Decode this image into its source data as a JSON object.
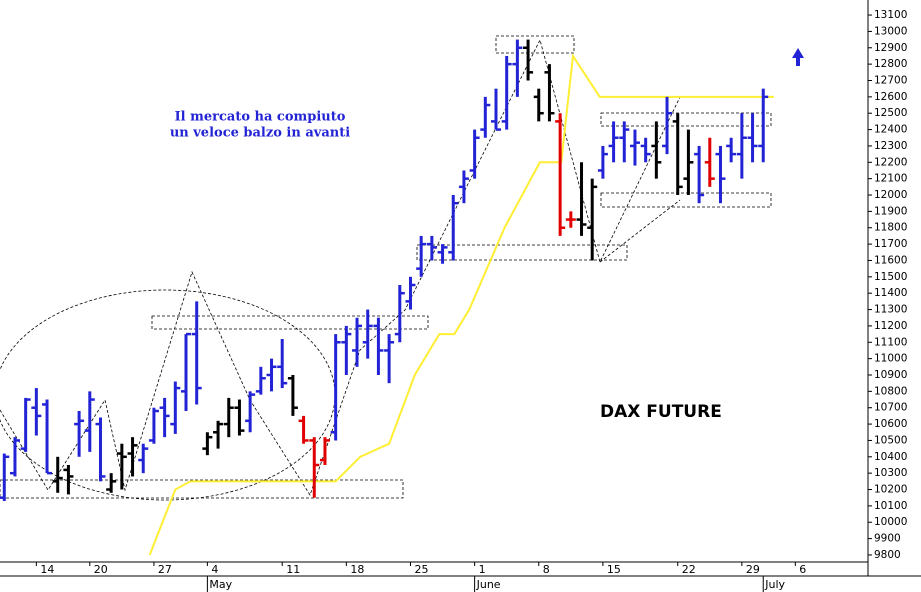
{
  "chart_data": {
    "type": "ohlc",
    "title": "DAX FUTURE",
    "annotations": [
      "Il mercato ha compiuto",
      "un veloce balzo in avanti"
    ],
    "x": [
      0,
      1,
      2,
      3,
      4,
      5,
      6,
      7,
      8,
      9,
      10,
      11,
      12,
      13,
      14,
      15,
      16,
      17,
      18,
      19,
      20,
      21,
      22,
      23,
      24,
      25,
      26,
      27,
      28,
      29,
      30,
      31,
      32,
      33,
      34,
      35,
      36,
      37,
      38,
      39,
      40,
      41,
      42,
      43,
      44,
      45,
      46,
      47,
      48,
      49,
      50,
      51,
      52,
      53,
      54,
      55,
      56,
      57,
      58,
      59,
      60,
      61,
      62,
      63,
      64,
      65,
      66,
      67,
      68,
      69,
      70,
      71
    ],
    "open": [
      10150,
      10300,
      10450,
      10700,
      10720,
      10250,
      10320,
      10600,
      10560,
      10600,
      10200,
      10420,
      10420,
      10380,
      10500,
      10700,
      10600,
      10800,
      11150,
      10450,
      10550,
      10600,
      10700,
      10620,
      10800,
      10900,
      10950,
      10880,
      10620,
      10500,
      10380,
      10550,
      11100,
      11050,
      11100,
      11200,
      11050,
      11150,
      11350,
      11550,
      11700,
      11650,
      11650,
      12050,
      12150,
      12400,
      12450,
      12450,
      12800,
      12900,
      12600,
      12750,
      12450,
      11850,
      11850,
      11800,
      12150,
      12300,
      12350,
      12300,
      12300,
      12300,
      12300,
      12450,
      12100,
      12250,
      12200,
      12250,
      12300,
      12250,
      12350,
      12300
    ],
    "high": [
      10420,
      10520,
      10760,
      10820,
      10750,
      10400,
      10350,
      10680,
      10800,
      10640,
      10300,
      10480,
      10520,
      10480,
      10700,
      10760,
      10860,
      11150,
      11350,
      10550,
      10620,
      10760,
      10750,
      10800,
      10950,
      11000,
      11120,
      10900,
      10650,
      10520,
      10520,
      11150,
      11200,
      11250,
      11300,
      11250,
      11150,
      11450,
      11500,
      11750,
      11750,
      11700,
      12000,
      12150,
      12400,
      12600,
      12650,
      12850,
      12950,
      12950,
      12650,
      12800,
      12500,
      11900,
      12200,
      12100,
      12300,
      12450,
      12450,
      12400,
      12350,
      12450,
      12600,
      12500,
      12400,
      12300,
      12350,
      12300,
      12350,
      12500,
      12500,
      12650
    ],
    "low": [
      10130,
      10280,
      10430,
      10530,
      10300,
      10180,
      10170,
      10400,
      10430,
      10250,
      10180,
      10200,
      10280,
      10300,
      10480,
      10520,
      10540,
      10680,
      10720,
      10410,
      10450,
      10520,
      10530,
      10550,
      10780,
      10800,
      10820,
      10650,
      10480,
      10150,
      10350,
      10500,
      10900,
      10950,
      11000,
      10900,
      10850,
      11100,
      11300,
      11500,
      11600,
      11580,
      11600,
      11950,
      12100,
      12350,
      12400,
      12400,
      12600,
      12700,
      12450,
      12450,
      11750,
      11800,
      11750,
      11600,
      12100,
      12200,
      12200,
      12180,
      12200,
      12100,
      12250,
      12000,
      12000,
      11950,
      12050,
      11950,
      12200,
      12100,
      12200,
      12200
    ],
    "close": [
      10400,
      10500,
      10750,
      10650,
      10300,
      10270,
      10280,
      10620,
      10750,
      10280,
      10250,
      10400,
      10470,
      10450,
      10680,
      10650,
      10820,
      11150,
      10820,
      10520,
      10600,
      10700,
      10560,
      10780,
      10880,
      10950,
      10850,
      10700,
      10500,
      10350,
      10500,
      11100,
      11150,
      11200,
      11200,
      11050,
      11100,
      11400,
      11450,
      11700,
      11680,
      11680,
      11950,
      12100,
      12350,
      12550,
      12400,
      12800,
      12900,
      12750,
      12500,
      12500,
      11800,
      11850,
      11820,
      12050,
      12250,
      12350,
      12400,
      12320,
      12250,
      12200,
      12500,
      12050,
      12200,
      12000,
      12100,
      12100,
      12250,
      12350,
      12300,
      12600
    ],
    "bar_colors": [
      "#2323d6",
      "#2323d6",
      "#2323d6",
      "#2323d6",
      "#2323d6",
      "#000000",
      "#000000",
      "#2323d6",
      "#2323d6",
      "#2323d6",
      "#000000",
      "#000000",
      "#000000",
      "#2323d6",
      "#2323d6",
      "#2323d6",
      "#2323d6",
      "#2323d6",
      "#2323d6",
      "#000000",
      "#000000",
      "#000000",
      "#000000",
      "#2323d6",
      "#2323d6",
      "#2323d6",
      "#2323d6",
      "#000000",
      "#e00000",
      "#e00000",
      "#e00000",
      "#2323d6",
      "#2323d6",
      "#2323d6",
      "#2323d6",
      "#2323d6",
      "#2323d6",
      "#2323d6",
      "#2323d6",
      "#2323d6",
      "#2323d6",
      "#2323d6",
      "#2323d6",
      "#2323d6",
      "#2323d6",
      "#2323d6",
      "#2323d6",
      "#2323d6",
      "#2323d6",
      "#000000",
      "#000000",
      "#000000",
      "#e00000",
      "#e00000",
      "#000000",
      "#000000",
      "#2323d6",
      "#2323d6",
      "#2323d6",
      "#2323d6",
      "#2323d6",
      "#000000",
      "#2323d6",
      "#000000",
      "#000000",
      "#2323d6",
      "#e00000",
      "#2323d6",
      "#2323d6",
      "#2323d6",
      "#2323d6",
      "#2323d6"
    ],
    "ma": {
      "color": "#ffee33",
      "x": [
        13.6,
        16,
        17.4,
        31,
        33.3,
        36,
        38.4,
        40.7,
        42.1,
        43.5,
        46.8,
        50.1,
        52.1,
        53.2,
        55.7,
        72
      ],
      "values": [
        9800,
        10200,
        10250,
        10250,
        10400,
        10480,
        10900,
        11150,
        11150,
        11300,
        11800,
        12200,
        12200,
        12850,
        12600,
        12600
      ]
    },
    "xlim": [
      -0.4,
      80.8
    ],
    "xticks": [
      {
        "value": 3,
        "label": "14"
      },
      {
        "value": 8,
        "label": "20"
      },
      {
        "value": 14,
        "label": "27"
      },
      {
        "value": 19,
        "label": "4"
      },
      {
        "value": 26,
        "label": "11"
      },
      {
        "value": 32,
        "label": "18"
      },
      {
        "value": 38,
        "label": "25"
      },
      {
        "value": 44,
        "label": "1"
      },
      {
        "value": 50,
        "label": "8"
      },
      {
        "value": 56,
        "label": "15"
      },
      {
        "value": 63,
        "label": "22"
      },
      {
        "value": 69,
        "label": "29"
      },
      {
        "value": 74,
        "label": "6"
      }
    ],
    "month_ticks": [
      {
        "value": 19,
        "label": "May"
      },
      {
        "value": 44,
        "label": "June"
      },
      {
        "value": 71,
        "label": "July"
      }
    ],
    "ylim": [
      9757,
      13192
    ],
    "yticks": [
      9800,
      9900,
      10000,
      10100,
      10200,
      10300,
      10400,
      10500,
      10600,
      10700,
      10800,
      10900,
      11000,
      11100,
      11200,
      11300,
      11400,
      11500,
      11600,
      11700,
      11800,
      11900,
      12000,
      12100,
      12200,
      12300,
      12400,
      12500,
      12600,
      12700,
      12800,
      12900,
      13000,
      13100
    ]
  }
}
